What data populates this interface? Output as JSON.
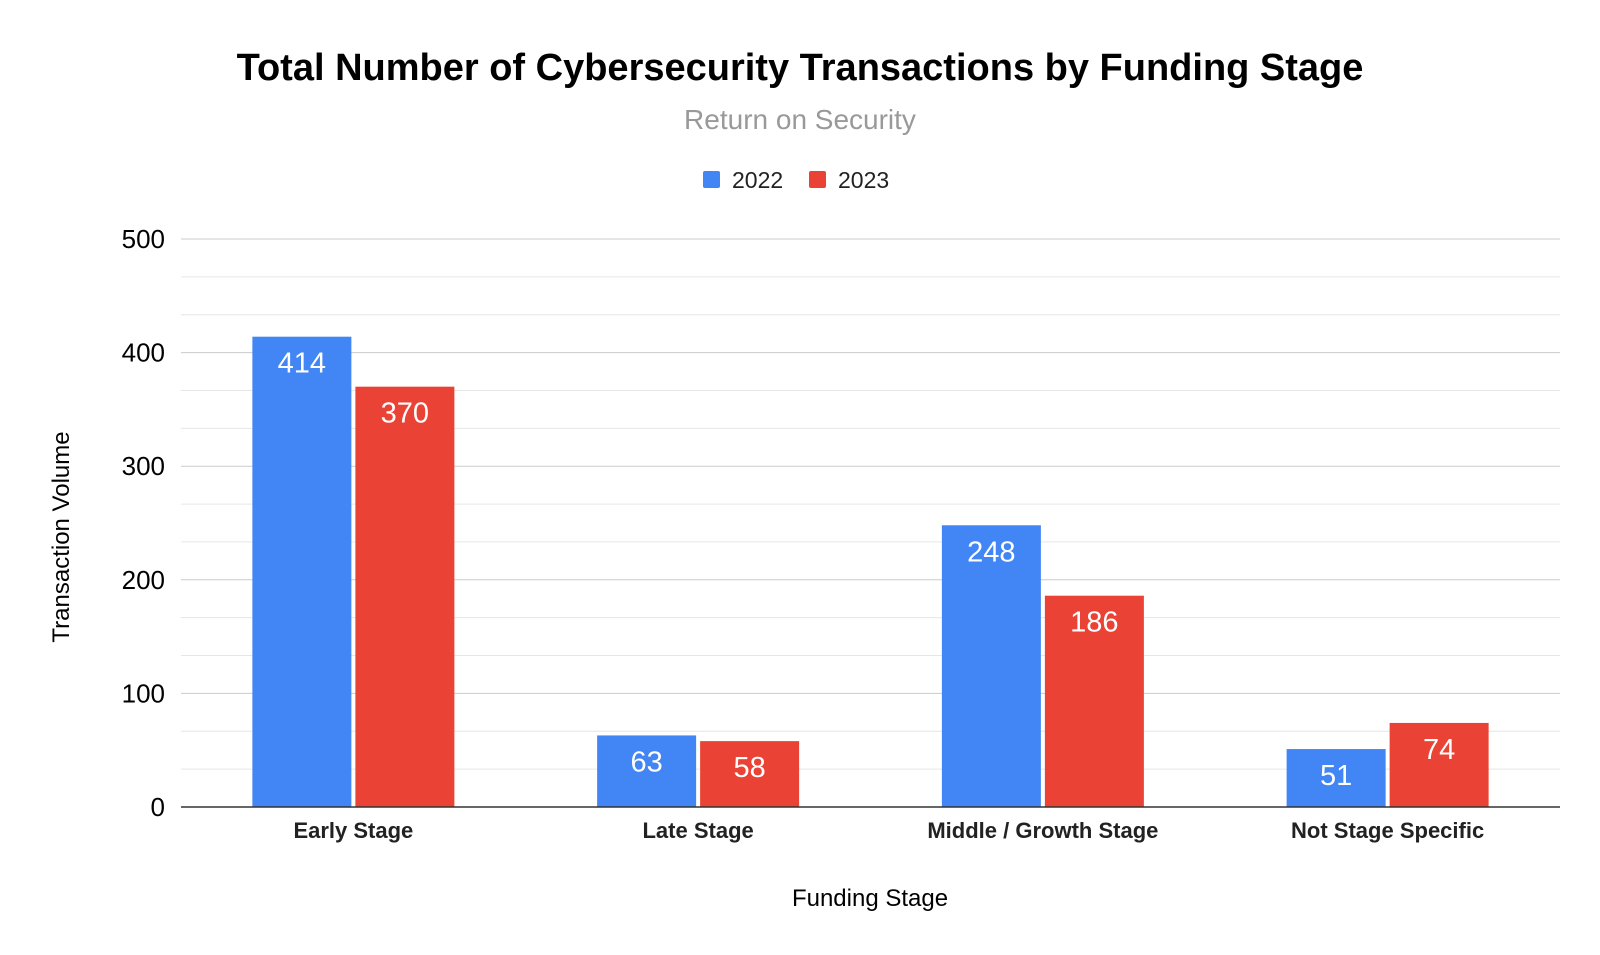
{
  "chart_data": {
    "type": "bar",
    "title": "Total Number of Cybersecurity Transactions by Funding Stage",
    "subtitle": "Return on Security",
    "xlabel": "Funding Stage",
    "ylabel": "Transaction Volume",
    "categories": [
      "Early Stage",
      "Late Stage",
      "Middle / Growth Stage",
      "Not Stage Specific"
    ],
    "series": [
      {
        "name": "2022",
        "color": "#4285f4",
        "values": [
          414,
          63,
          248,
          51
        ]
      },
      {
        "name": "2023",
        "color": "#ea4335",
        "values": [
          370,
          58,
          186,
          74
        ]
      }
    ],
    "ylim": [
      0,
      500
    ],
    "yticks": [
      "0",
      "100",
      "200",
      "300",
      "400",
      "500"
    ],
    "grid": true,
    "legend": "top-center",
    "data_labels": true
  }
}
